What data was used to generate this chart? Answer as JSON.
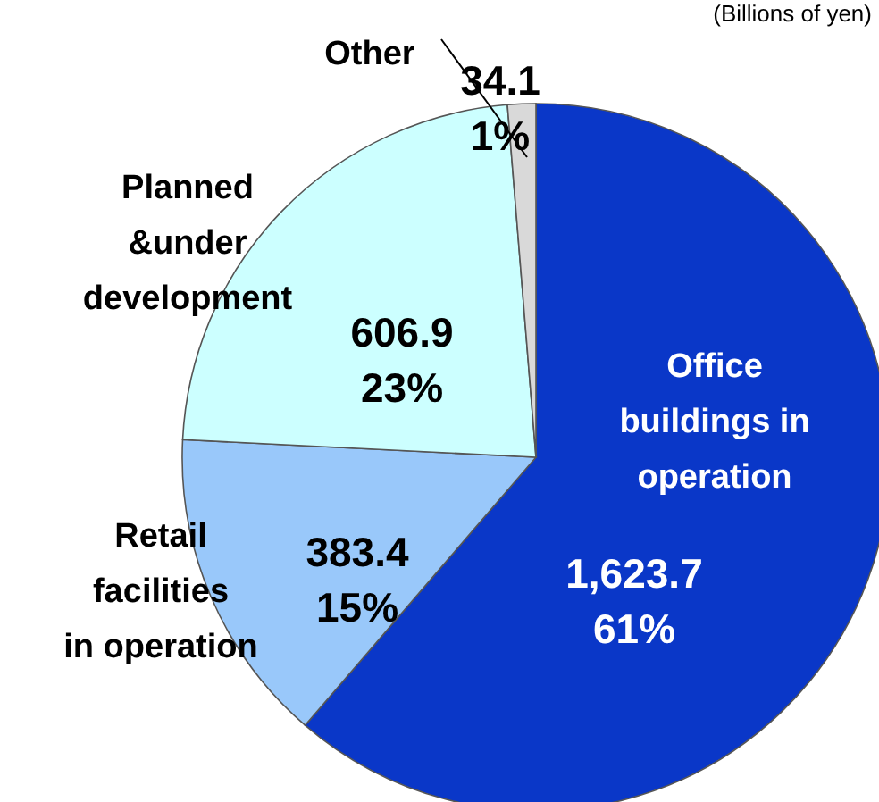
{
  "chart_data": {
    "type": "pie",
    "categories": [
      "Office\nbuildings in\noperation",
      "Retail\nfacilities\nin operation",
      "Planned\n&under\ndevelopment",
      "Other"
    ],
    "values": [
      1623.7,
      383.4,
      606.9,
      34.1
    ],
    "value_labels": [
      "1,623.7\n61%",
      "383.4\n15%",
      "606.9\n23%",
      "34.1\n1%"
    ],
    "colors": [
      "#0a37c8",
      "#99c8fa",
      "#ccffff",
      "#d9d9d9"
    ],
    "annotations": [
      "(Billions of yen)"
    ]
  }
}
